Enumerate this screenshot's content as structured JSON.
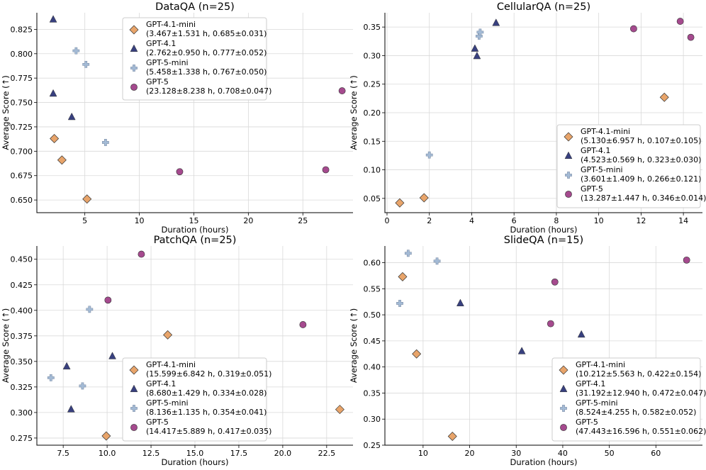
{
  "chart_data": [
    {
      "type": "scatter",
      "title": "DataQA (n=25)",
      "xlabel": "Duration (hours)",
      "ylabel": "Average Score (↑)",
      "xlim": [
        0.6,
        29.6
      ],
      "ylim": [
        0.637,
        0.842
      ],
      "xticks": [
        5,
        10,
        15,
        20,
        25
      ],
      "xtick_labels": [
        "5",
        "10",
        "15",
        "20",
        "25"
      ],
      "yticks": [
        0.65,
        0.675,
        0.7,
        0.725,
        0.75,
        0.775,
        0.8,
        0.825
      ],
      "ytick_labels": [
        "0.650",
        "0.675",
        "0.700",
        "0.725",
        "0.750",
        "0.775",
        "0.800",
        "0.825"
      ],
      "grid": true,
      "legend_position": "top-center",
      "series": [
        {
          "name": "GPT-4.1-mini",
          "legend_detail": "(3.467±1.531 h, 0.685±0.031)",
          "marker": "diamond",
          "color": "#E8A46A",
          "points": [
            [
              2.2,
              0.713
            ],
            [
              2.9,
              0.691
            ],
            [
              5.2,
              0.651
            ]
          ]
        },
        {
          "name": "GPT-4.1",
          "legend_detail": "(2.762±0.950 h, 0.777±0.052)",
          "marker": "triangle",
          "color": "#38407F",
          "points": [
            [
              2.1,
              0.835
            ],
            [
              2.1,
              0.759
            ],
            [
              3.8,
              0.735
            ]
          ]
        },
        {
          "name": "GPT-5-mini",
          "legend_detail": "(5.458±1.338 h, 0.767±0.050)",
          "marker": "plus",
          "color": "#A4BBD6",
          "points": [
            [
              4.2,
              0.803
            ],
            [
              5.1,
              0.789
            ],
            [
              6.9,
              0.709
            ]
          ]
        },
        {
          "name": "GPT-5",
          "legend_detail": "(23.128±8.238 h, 0.708±0.047)",
          "marker": "circle",
          "color": "#A54A8E",
          "points": [
            [
              13.7,
              0.679
            ],
            [
              27.1,
              0.681
            ],
            [
              28.6,
              0.762
            ]
          ]
        }
      ]
    },
    {
      "type": "scatter",
      "title": "CellularQA (n=25)",
      "xlabel": "Duration (hours)",
      "ylabel": "Average Score (↑)",
      "xlim": [
        -0.1,
        14.9
      ],
      "ylim": [
        0.025,
        0.375
      ],
      "xticks": [
        0,
        2,
        4,
        6,
        8,
        10,
        12,
        14
      ],
      "xtick_labels": [
        "0",
        "2",
        "4",
        "6",
        "8",
        "10",
        "12",
        "14"
      ],
      "yticks": [
        0.05,
        0.1,
        0.15,
        0.2,
        0.25,
        0.3,
        0.35
      ],
      "ytick_labels": [
        "0.05",
        "0.10",
        "0.15",
        "0.20",
        "0.25",
        "0.30",
        "0.35"
      ],
      "grid": true,
      "legend_position": "lower-right",
      "series": [
        {
          "name": "GPT-4.1-mini",
          "legend_detail": "(5.130±6.957 h, 0.107±0.105)",
          "marker": "diamond",
          "color": "#E8A46A",
          "points": [
            [
              0.6,
              0.042
            ],
            [
              1.75,
              0.051
            ],
            [
              13.1,
              0.227
            ]
          ]
        },
        {
          "name": "GPT-4.1",
          "legend_detail": "(4.523±0.569 h, 0.323±0.030)",
          "marker": "triangle",
          "color": "#38407F",
          "points": [
            [
              4.15,
              0.312
            ],
            [
              4.25,
              0.299
            ],
            [
              5.15,
              0.357
            ]
          ]
        },
        {
          "name": "GPT-5-mini",
          "legend_detail": "(3.601±1.409 h, 0.266±0.121)",
          "marker": "plus",
          "color": "#A4BBD6",
          "points": [
            [
              2.0,
              0.126
            ],
            [
              4.35,
              0.334
            ],
            [
              4.4,
              0.341
            ]
          ]
        },
        {
          "name": "GPT-5",
          "legend_detail": "(13.287±1.447 h, 0.346±0.014)",
          "marker": "circle",
          "color": "#A54A8E",
          "points": [
            [
              11.65,
              0.347
            ],
            [
              13.85,
              0.36
            ],
            [
              14.35,
              0.332
            ]
          ]
        }
      ]
    },
    {
      "type": "scatter",
      "title": "PatchQA (n=25)",
      "xlabel": "Duration (hours)",
      "ylabel": "Average Score (↑)",
      "xlim": [
        6.0,
        24.0
      ],
      "ylim": [
        0.268,
        0.463
      ],
      "xticks": [
        7.5,
        10.0,
        12.5,
        15.0,
        17.5,
        20.0,
        22.5
      ],
      "xtick_labels": [
        "7.5",
        "10.0",
        "12.5",
        "15.0",
        "17.5",
        "20.0",
        "22.5"
      ],
      "yticks": [
        0.275,
        0.3,
        0.325,
        0.35,
        0.375,
        0.4,
        0.425,
        0.45
      ],
      "ytick_labels": [
        "0.275",
        "0.300",
        "0.325",
        "0.350",
        "0.375",
        "0.400",
        "0.425",
        "0.450"
      ],
      "grid": true,
      "legend_position": "lower-center",
      "series": [
        {
          "name": "GPT-4.1-mini",
          "legend_detail": "(15.599±6.842 h, 0.319±0.051)",
          "marker": "diamond",
          "color": "#E8A46A",
          "points": [
            [
              9.95,
              0.277
            ],
            [
              13.45,
              0.376
            ],
            [
              23.25,
              0.303
            ]
          ]
        },
        {
          "name": "GPT-4.1",
          "legend_detail": "(8.680±1.429 h, 0.334±0.028)",
          "marker": "triangle",
          "color": "#38407F",
          "points": [
            [
              7.7,
              0.345
            ],
            [
              7.95,
              0.303
            ],
            [
              10.3,
              0.355
            ]
          ]
        },
        {
          "name": "GPT-5-mini",
          "legend_detail": "(8.136±1.135 h, 0.354±0.041)",
          "marker": "plus",
          "color": "#A4BBD6",
          "points": [
            [
              6.8,
              0.334
            ],
            [
              8.6,
              0.326
            ],
            [
              9.0,
              0.401
            ]
          ]
        },
        {
          "name": "GPT-5",
          "legend_detail": "(14.417±5.889 h, 0.417±0.035)",
          "marker": "circle",
          "color": "#A54A8E",
          "points": [
            [
              10.05,
              0.41
            ],
            [
              11.95,
              0.455
            ],
            [
              21.15,
              0.386
            ]
          ]
        }
      ]
    },
    {
      "type": "scatter",
      "title": "SlideQA (n=15)",
      "xlabel": "Duration (hours)",
      "ylabel": "Average Score (↑)",
      "xlim": [
        1.8,
        70.0
      ],
      "ylim": [
        0.25,
        0.632
      ],
      "xticks": [
        10,
        20,
        30,
        40,
        50,
        60
      ],
      "xtick_labels": [
        "10",
        "20",
        "30",
        "40",
        "50",
        "60"
      ],
      "yticks": [
        0.25,
        0.3,
        0.35,
        0.4,
        0.45,
        0.5,
        0.55,
        0.6
      ],
      "ytick_labels": [
        "0.25",
        "0.30",
        "0.35",
        "0.40",
        "0.45",
        "0.50",
        "0.55",
        "0.60"
      ],
      "grid": true,
      "legend_position": "lower-right",
      "series": [
        {
          "name": "GPT-4.1-mini",
          "legend_detail": "(10.212±5.563 h, 0.422±0.154)",
          "marker": "diamond",
          "color": "#E8A46A",
          "points": [
            [
              5.6,
              0.573
            ],
            [
              8.6,
              0.425
            ],
            [
              16.3,
              0.267
            ]
          ]
        },
        {
          "name": "GPT-4.1",
          "legend_detail": "(31.192±12.940 h, 0.472±0.047)",
          "marker": "triangle",
          "color": "#38407F",
          "points": [
            [
              18.0,
              0.522
            ],
            [
              31.2,
              0.43
            ],
            [
              44.0,
              0.462
            ]
          ]
        },
        {
          "name": "GPT-5-mini",
          "legend_detail": "(8.524±4.255 h, 0.582±0.052)",
          "marker": "plus",
          "color": "#A4BBD6",
          "points": [
            [
              5.0,
              0.522
            ],
            [
              6.8,
              0.618
            ],
            [
              13.0,
              0.603
            ]
          ]
        },
        {
          "name": "GPT-5",
          "legend_detail": "(47.443±16.596 h, 0.551±0.062)",
          "marker": "circle",
          "color": "#A54A8E",
          "points": [
            [
              37.4,
              0.483
            ],
            [
              38.3,
              0.563
            ],
            [
              66.6,
              0.605
            ]
          ]
        }
      ]
    }
  ]
}
